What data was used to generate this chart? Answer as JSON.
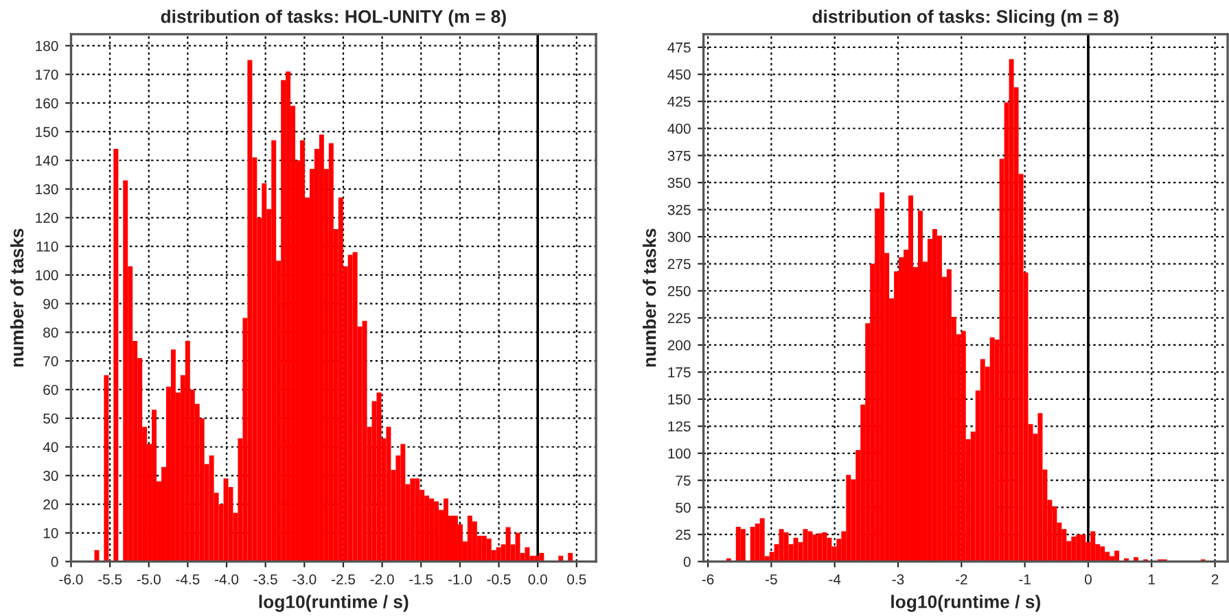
{
  "chart_data": [
    {
      "type": "histogram",
      "title": "distribution of tasks: HOL-UNITY (m = 8)",
      "xlabel": "log10(runtime / s)",
      "ylabel": "number of tasks",
      "color": "#ff0000",
      "grid": true,
      "bins": [
        -5.7,
        -5.6385,
        -5.577,
        -5.5155,
        -5.454,
        -5.3925,
        -5.331,
        -5.2695,
        -5.208,
        -5.1465,
        -5.085,
        -5.0235,
        -4.962,
        -4.9005,
        -4.839,
        -4.7775,
        -4.716,
        -4.6545,
        -4.593,
        -4.5315,
        -4.47,
        -4.4085,
        -4.347,
        -4.2855,
        -4.224,
        -4.1625,
        -4.101,
        -4.0395,
        -3.978,
        -3.9165,
        -3.855,
        -3.7935,
        -3.732,
        -3.6705,
        -3.609,
        -3.5475,
        -3.486,
        -3.4245,
        -3.363,
        -3.3015,
        -3.24,
        -3.1785,
        -3.117,
        -3.0555,
        -2.994,
        -2.9325,
        -2.871,
        -2.8095,
        -2.748,
        -2.6865,
        -2.625,
        -2.5635,
        -2.502,
        -2.4405,
        -2.379,
        -2.3175,
        -2.256,
        -2.1945,
        -2.133,
        -2.0715,
        -2.01,
        -1.9485,
        -1.887,
        -1.8255,
        -1.764,
        -1.7025,
        -1.641,
        -1.5795,
        -1.518,
        -1.4565,
        -1.395,
        -1.3335,
        -1.272,
        -1.2105,
        -1.149,
        -1.0875,
        -1.026,
        -0.9645,
        -0.903,
        -0.8415,
        -0.78,
        -0.7185,
        -0.657,
        -0.5955,
        -0.534,
        -0.4725,
        -0.411,
        -0.3495,
        -0.288,
        -0.2265,
        -0.165,
        -0.1035,
        -0.042,
        0.0195,
        0.081,
        0.1425,
        0.204,
        0.2655,
        0.327,
        0.3885,
        0.45
      ],
      "values": [
        4,
        0,
        65,
        0,
        144,
        0,
        133,
        103,
        77,
        71,
        47,
        41,
        53,
        28,
        33,
        61,
        74,
        59,
        65,
        77,
        60,
        55,
        50,
        34,
        37,
        24,
        20,
        29,
        26,
        17,
        43,
        85,
        175,
        141,
        120,
        132,
        123,
        147,
        105,
        168,
        171,
        159,
        140,
        147,
        127,
        137,
        144,
        149,
        137,
        146,
        116,
        127,
        103,
        107,
        108,
        82,
        84,
        47,
        56,
        59,
        43,
        47,
        32,
        37,
        41,
        27,
        29,
        29,
        25,
        23,
        22,
        21,
        18,
        22,
        16,
        16,
        13,
        7,
        16,
        14,
        9,
        9,
        8,
        4,
        5,
        6,
        12,
        6,
        10,
        3,
        5,
        2,
        2,
        3,
        0,
        0,
        0,
        2,
        0,
        3
      ],
      "xlim": [
        -6.0,
        0.75
      ],
      "ylim": [
        0,
        184
      ],
      "xticks": [
        {
          "value": -6,
          "label": "-6.0"
        },
        {
          "value": -5.5,
          "label": "-5.5"
        },
        {
          "value": -5,
          "label": "-5.0"
        },
        {
          "value": -4.5,
          "label": "-4.5"
        },
        {
          "value": -4,
          "label": "-4.0"
        },
        {
          "value": -3.5,
          "label": "-3.5"
        },
        {
          "value": -3,
          "label": "-3.0"
        },
        {
          "value": -2.5,
          "label": "-2.5"
        },
        {
          "value": -2,
          "label": "-2.0"
        },
        {
          "value": -1.5,
          "label": "-1.5"
        },
        {
          "value": -1,
          "label": "-1.0"
        },
        {
          "value": -0.5,
          "label": "-0.5"
        },
        {
          "value": 0,
          "label": "0.0"
        },
        {
          "value": 0.5,
          "label": "0.5"
        }
      ],
      "yticks": [
        0,
        10,
        20,
        30,
        40,
        50,
        60,
        70,
        80,
        90,
        100,
        110,
        120,
        130,
        140,
        150,
        160,
        170,
        180
      ],
      "ref_lines": [
        {
          "axis": "x",
          "value": 0,
          "color": "#000000"
        }
      ]
    },
    {
      "type": "histogram",
      "title": "distribution of tasks: Slicing (m = 8)",
      "xlabel": "log10(runtime / s)",
      "ylabel": "number of tasks",
      "color": "#ff0000",
      "grid": true,
      "bins": [
        -5.71,
        -5.6344,
        -5.5588,
        -5.4832,
        -5.4076,
        -5.332,
        -5.2564,
        -5.1808,
        -5.1052,
        -5.0296,
        -4.954,
        -4.8784,
        -4.8028,
        -4.7272,
        -4.6516,
        -4.576,
        -4.5004,
        -4.4248,
        -4.3492,
        -4.2736,
        -4.198,
        -4.1224,
        -4.0468,
        -3.9712,
        -3.8956,
        -3.82,
        -3.7444,
        -3.6688,
        -3.5932,
        -3.5176,
        -3.442,
        -3.3664,
        -3.2908,
        -3.2152,
        -3.1396,
        -3.064,
        -2.9884,
        -2.9128,
        -2.8372,
        -2.7616,
        -2.686,
        -2.6104,
        -2.5348,
        -2.4592,
        -2.3836,
        -2.308,
        -2.2324,
        -2.1568,
        -2.0812,
        -2.0056,
        -1.93,
        -1.8544,
        -1.7788,
        -1.7032,
        -1.6276,
        -1.552,
        -1.4764,
        -1.4008,
        -1.3252,
        -1.2496,
        -1.174,
        -1.0984,
        -1.0228,
        -0.9472,
        -0.8716,
        -0.796,
        -0.7204,
        -0.6448,
        -0.5692,
        -0.4936,
        -0.418,
        -0.3424,
        -0.2668,
        -0.1912,
        -0.1156,
        -0.04,
        0.0356,
        0.1112,
        0.1868,
        0.2624,
        0.338,
        0.4136,
        0.4892,
        0.5648,
        0.6404,
        0.716,
        0.7916,
        0.8672,
        0.9428,
        1.0184,
        1.094,
        1.1696,
        1.2452,
        1.3208,
        1.3964,
        1.472,
        1.5476,
        1.6232,
        1.6988,
        1.7744,
        1.85
      ],
      "values": [
        3,
        1,
        32,
        30,
        0,
        32,
        35,
        40,
        5,
        9,
        16,
        30,
        27,
        16,
        22,
        18,
        30,
        28,
        25,
        26,
        27,
        22,
        14,
        21,
        28,
        80,
        76,
        103,
        145,
        220,
        275,
        326,
        341,
        285,
        243,
        268,
        281,
        288,
        338,
        272,
        324,
        277,
        298,
        307,
        301,
        263,
        270,
        226,
        210,
        213,
        113,
        120,
        158,
        187,
        180,
        207,
        205,
        372,
        424,
        464,
        438,
        358,
        267,
        127,
        118,
        137,
        85,
        57,
        51,
        36,
        30,
        19,
        23,
        25,
        25,
        18,
        28,
        16,
        14,
        9,
        5,
        10,
        0,
        3,
        0,
        4,
        0,
        2,
        0,
        0,
        2,
        2,
        0,
        0,
        0,
        0,
        0,
        0,
        0,
        2
      ],
      "xlim": [
        -6.07,
        2.2
      ],
      "ylim": [
        0,
        487
      ],
      "xticks": [
        -6,
        -5,
        -4,
        -3,
        -2,
        -1,
        0,
        1,
        2
      ],
      "yticks": [
        0,
        25,
        50,
        75,
        100,
        125,
        150,
        175,
        200,
        225,
        250,
        275,
        300,
        325,
        350,
        375,
        400,
        425,
        450,
        475
      ],
      "ref_lines": [
        {
          "axis": "x",
          "value": 0,
          "color": "#000000"
        }
      ]
    }
  ]
}
